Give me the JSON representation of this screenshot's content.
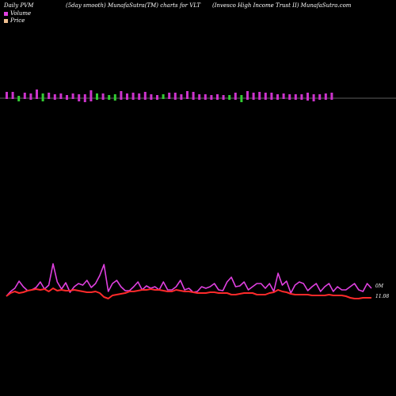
{
  "header": {
    "left": "Daily PVM",
    "middle": "(5day smooth) MunafaSutra(TM) charts for VLT",
    "right": "(Invesco High Income Trust II) MunafaSutra.com"
  },
  "legend": {
    "volume_label": "Volume",
    "price_label": "Price",
    "volume_color": "#e040e0",
    "price_color": "#f0c090"
  },
  "chart_data": [
    {
      "type": "bar",
      "panel": "volume",
      "bars": [
        {
          "up": 8,
          "down": 1,
          "color": "#cc33cc"
        },
        {
          "up": 8,
          "down": 1,
          "color": "#cc33cc"
        },
        {
          "up": 3,
          "down": 4,
          "color": "#33cc33"
        },
        {
          "up": 7,
          "down": 1,
          "color": "#cc33cc"
        },
        {
          "up": 6,
          "down": 2,
          "color": "#cc33cc"
        },
        {
          "up": 11,
          "down": 1,
          "color": "#cc33cc"
        },
        {
          "up": 6,
          "down": 4,
          "color": "#33cc33"
        },
        {
          "up": 7,
          "down": 1,
          "color": "#cc33cc"
        },
        {
          "up": 5,
          "down": 2,
          "color": "#cc33cc"
        },
        {
          "up": 6,
          "down": 1,
          "color": "#cc33cc"
        },
        {
          "up": 4,
          "down": 2,
          "color": "#cc33cc"
        },
        {
          "up": 6,
          "down": 1,
          "color": "#cc33cc"
        },
        {
          "up": 5,
          "down": 4,
          "color": "#cc33cc"
        },
        {
          "up": 5,
          "down": 5,
          "color": "#cc33cc"
        },
        {
          "up": 10,
          "down": 4,
          "color": "#cc33cc"
        },
        {
          "up": 6,
          "down": 2,
          "color": "#33cc33"
        },
        {
          "up": 6,
          "down": 2,
          "color": "#cc33cc"
        },
        {
          "up": 4,
          "down": 2,
          "color": "#33cc33"
        },
        {
          "up": 5,
          "down": 3,
          "color": "#33cc33"
        },
        {
          "up": 9,
          "down": 2,
          "color": "#cc33cc"
        },
        {
          "up": 6,
          "down": 2,
          "color": "#cc33cc"
        },
        {
          "up": 7,
          "down": 2,
          "color": "#cc33cc"
        },
        {
          "up": 6,
          "down": 2,
          "color": "#cc33cc"
        },
        {
          "up": 8,
          "down": 2,
          "color": "#cc33cc"
        },
        {
          "up": 5,
          "down": 2,
          "color": "#cc33cc"
        },
        {
          "up": 4,
          "down": 2,
          "color": "#cc33cc"
        },
        {
          "up": 5,
          "down": 1,
          "color": "#33cc33"
        },
        {
          "up": 7,
          "down": 1,
          "color": "#cc33cc"
        },
        {
          "up": 7,
          "down": 2,
          "color": "#cc33cc"
        },
        {
          "up": 5,
          "down": 2,
          "color": "#cc33cc"
        },
        {
          "up": 9,
          "down": 1,
          "color": "#cc33cc"
        },
        {
          "up": 8,
          "down": 2,
          "color": "#cc33cc"
        },
        {
          "up": 5,
          "down": 2,
          "color": "#cc33cc"
        },
        {
          "up": 5,
          "down": 2,
          "color": "#cc33cc"
        },
        {
          "up": 4,
          "down": 2,
          "color": "#cc33cc"
        },
        {
          "up": 5,
          "down": 2,
          "color": "#cc33cc"
        },
        {
          "up": 4,
          "down": 2,
          "color": "#cc33cc"
        },
        {
          "up": 4,
          "down": 2,
          "color": "#33cc33"
        },
        {
          "up": 7,
          "down": 2,
          "color": "#cc33cc"
        },
        {
          "up": 4,
          "down": 5,
          "color": "#33cc33"
        },
        {
          "up": 9,
          "down": 2,
          "color": "#cc33cc"
        },
        {
          "up": 7,
          "down": 2,
          "color": "#cc33cc"
        },
        {
          "up": 8,
          "down": 2,
          "color": "#cc33cc"
        },
        {
          "up": 7,
          "down": 2,
          "color": "#cc33cc"
        },
        {
          "up": 7,
          "down": 2,
          "color": "#cc33cc"
        },
        {
          "up": 5,
          "down": 2,
          "color": "#cc33cc"
        },
        {
          "up": 6,
          "down": 1,
          "color": "#cc33cc"
        },
        {
          "up": 5,
          "down": 2,
          "color": "#cc33cc"
        },
        {
          "up": 5,
          "down": 2,
          "color": "#cc33cc"
        },
        {
          "up": 5,
          "down": 2,
          "color": "#cc33cc"
        },
        {
          "up": 7,
          "down": 3,
          "color": "#cc33cc"
        },
        {
          "up": 5,
          "down": 4,
          "color": "#cc33cc"
        },
        {
          "up": 5,
          "down": 2,
          "color": "#cc33cc"
        },
        {
          "up": 6,
          "down": 2,
          "color": "#cc33cc"
        },
        {
          "up": 7,
          "down": 2,
          "color": "#cc33cc"
        }
      ]
    },
    {
      "type": "line",
      "panel": "price",
      "series": [
        {
          "color": "#e040e0",
          "values": [
            374,
            368,
            364,
            355,
            362,
            367,
            366,
            363,
            356,
            365,
            360,
            333,
            356,
            365,
            357,
            369,
            362,
            358,
            360,
            354,
            363,
            358,
            348,
            334,
            368,
            358,
            354,
            362,
            367,
            367,
            362,
            356,
            366,
            361,
            364,
            362,
            366,
            356,
            366,
            366,
            362,
            354,
            366,
            364,
            369,
            368,
            362,
            364,
            362,
            358,
            366,
            367,
            356,
            350,
            362,
            361,
            356,
            366,
            362,
            358,
            358,
            364,
            358,
            368,
            345,
            360,
            355,
            370,
            360,
            356,
            358,
            367,
            362,
            358,
            368,
            362,
            358,
            368,
            362,
            366,
            366,
            362,
            358,
            366,
            368,
            358,
            364
          ]
        },
        {
          "color": "#ff2a2a",
          "values": [
            374,
            370,
            368,
            370,
            369,
            367,
            366,
            365,
            366,
            365,
            368,
            364,
            367,
            366,
            367,
            367,
            366,
            367,
            368,
            369,
            369,
            368,
            370,
            375,
            377,
            373,
            372,
            371,
            370,
            368,
            368,
            367,
            366,
            366,
            365,
            366,
            366,
            367,
            368,
            368,
            366,
            367,
            368,
            368,
            369,
            370,
            370,
            370,
            369,
            369,
            370,
            370,
            370,
            372,
            372,
            371,
            370,
            370,
            370,
            372,
            372,
            372,
            370,
            369,
            366,
            368,
            369,
            371,
            372,
            372,
            372,
            372,
            373,
            373,
            373,
            373,
            372,
            373,
            373,
            373,
            374,
            376,
            377,
            377,
            376,
            376,
            376
          ]
        }
      ],
      "labels": {
        "volume_end": "0M",
        "price_end": "11.08"
      }
    }
  ]
}
